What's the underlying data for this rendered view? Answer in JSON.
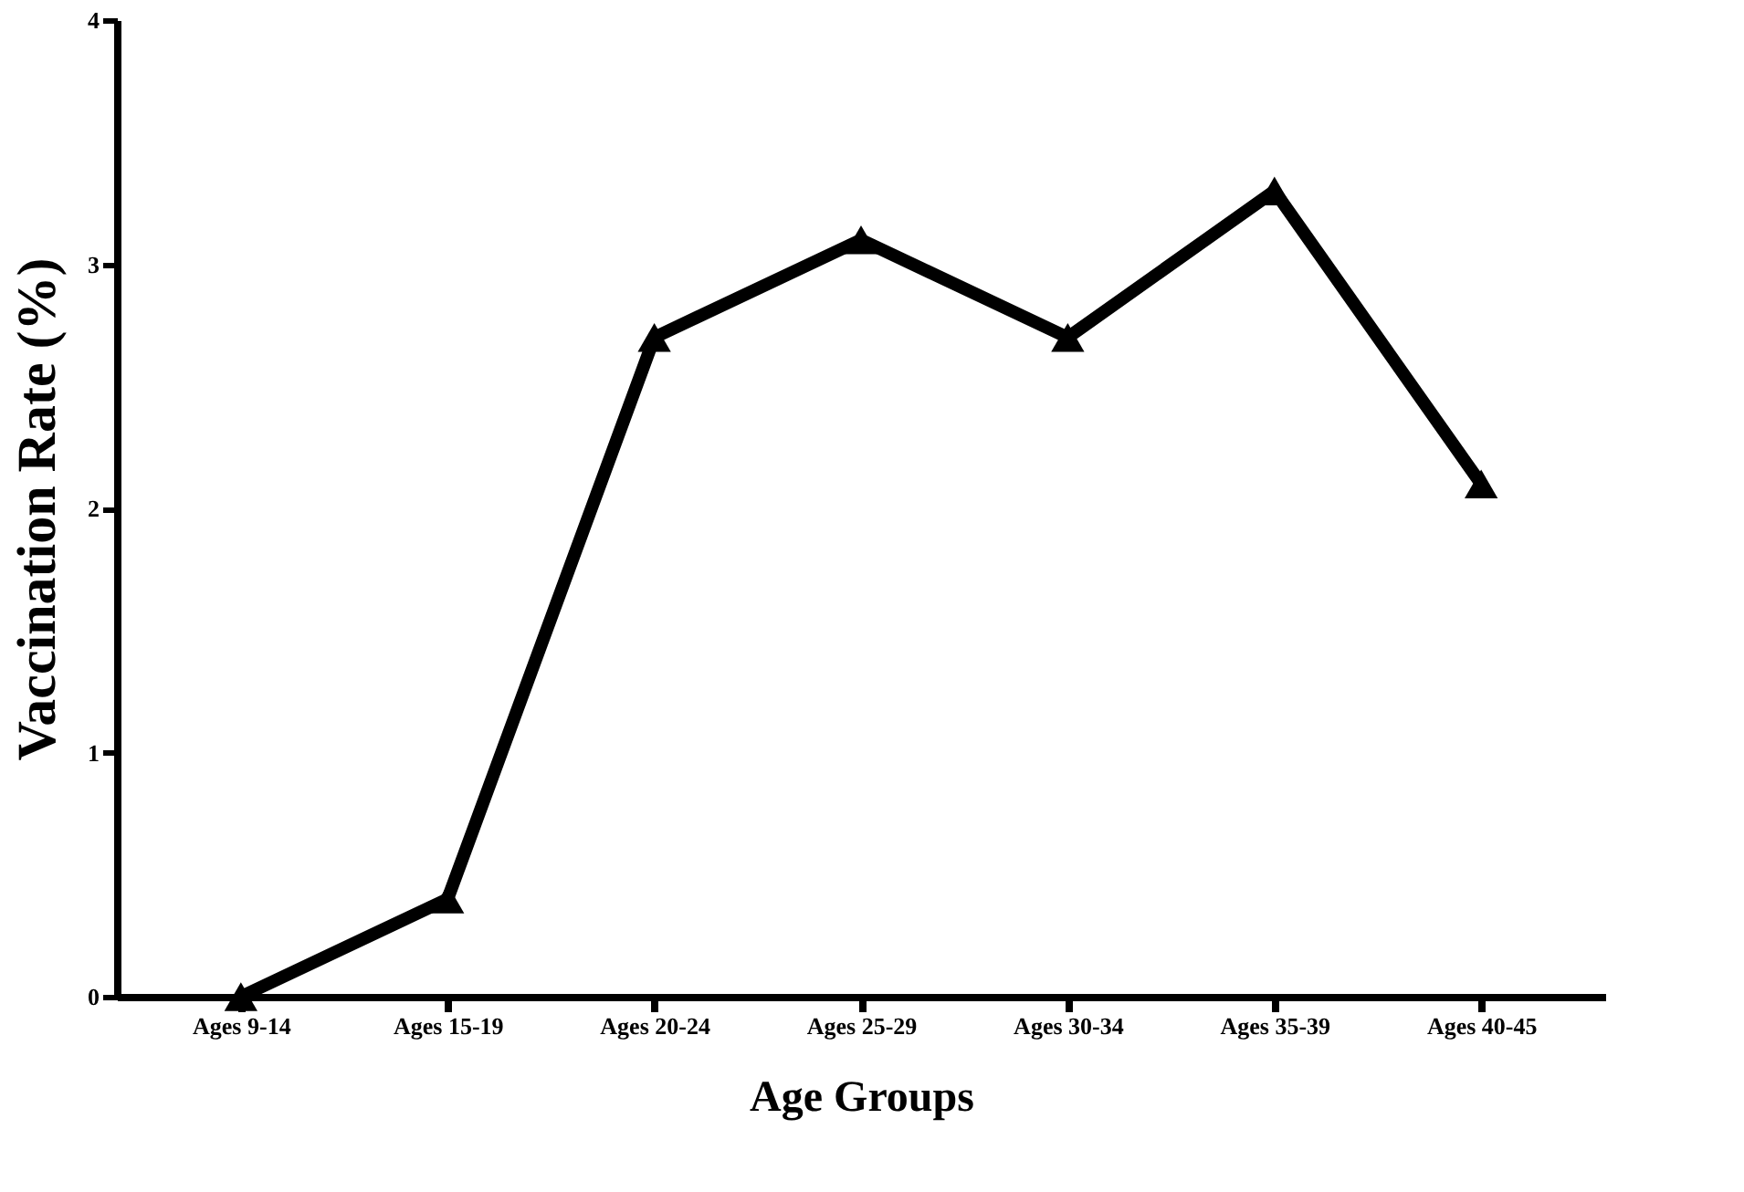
{
  "chart_data": {
    "type": "line",
    "xlabel": "Age Groups",
    "ylabel": "Vaccination Rate (%)",
    "categories": [
      "Ages 9-14",
      "Ages 15-19",
      "Ages 20-24",
      "Ages 25-29",
      "Ages 30-34",
      "Ages 35-39",
      "Ages 40-45"
    ],
    "series": [
      {
        "color": "#000000",
        "values": [
          0,
          0.4,
          2.7,
          3.1,
          2.7,
          3.3,
          2.1
        ]
      }
    ],
    "ylim": [
      0,
      4
    ],
    "yticks": [
      0,
      1,
      2,
      3,
      4
    ],
    "marker": "triangle",
    "line_style": "solid",
    "grid": false,
    "legend": false
  }
}
